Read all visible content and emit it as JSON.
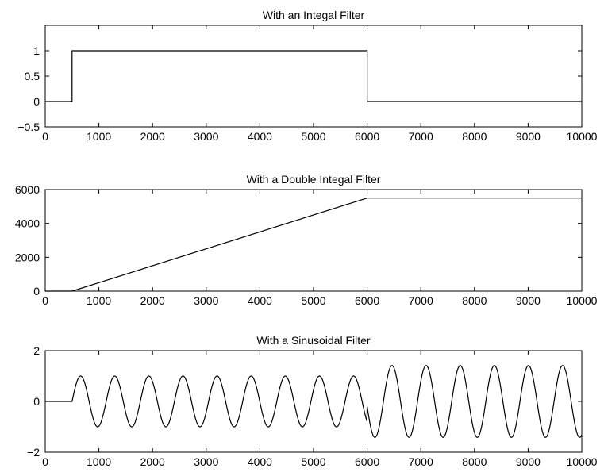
{
  "chart_data": [
    {
      "type": "line",
      "title": "With an Integal Filter",
      "xlim": [
        0,
        10000
      ],
      "ylim": [
        -0.5,
        1.5
      ],
      "xticks": [
        0,
        1000,
        2000,
        3000,
        4000,
        5000,
        6000,
        7000,
        8000,
        9000,
        10000
      ],
      "yticks": [
        -0.5,
        0,
        0.5,
        1
      ],
      "ytick_labels": [
        "−0.5",
        "0",
        "0.5",
        "1"
      ],
      "grid": false,
      "series": [
        {
          "x": [
            0,
            500,
            500,
            6000,
            6000,
            10000
          ],
          "y": [
            0,
            0,
            1,
            1,
            0,
            0
          ]
        }
      ]
    },
    {
      "type": "line",
      "title": "With a Double Integal Filter",
      "xlim": [
        0,
        10000
      ],
      "ylim": [
        0,
        6000
      ],
      "xticks": [
        0,
        1000,
        2000,
        3000,
        4000,
        5000,
        6000,
        7000,
        8000,
        9000,
        10000
      ],
      "yticks": [
        0,
        2000,
        4000,
        6000
      ],
      "ytick_labels": [
        "0",
        "2000",
        "4000",
        "6000"
      ],
      "grid": false,
      "series": [
        {
          "x": [
            0,
            500,
            6000,
            10000
          ],
          "y": [
            0,
            0,
            5500,
            5500
          ]
        }
      ]
    },
    {
      "type": "line",
      "title": "With a Sinusoidal Filter",
      "xlim": [
        0,
        10000
      ],
      "ylim": [
        -2,
        2
      ],
      "xticks": [
        0,
        1000,
        2000,
        3000,
        4000,
        5000,
        6000,
        7000,
        8000,
        9000,
        10000
      ],
      "yticks": [
        -2,
        0,
        2
      ],
      "ytick_labels": [
        "−2",
        "0",
        "2"
      ],
      "grid": false,
      "series": [
        {
          "function": "sinusoid",
          "onset": 500,
          "period": 636,
          "amplitude_before": 1,
          "switch_at": 6000,
          "amplitude_after": 1.414,
          "x": [
            0,
            10000
          ]
        }
      ]
    }
  ]
}
